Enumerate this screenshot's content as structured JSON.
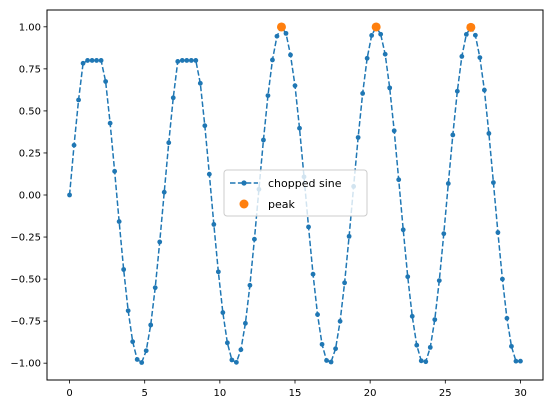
{
  "chart_data": {
    "type": "line",
    "xlim": [
      -1.5,
      31.5
    ],
    "ylim": [
      -1.1,
      1.1
    ],
    "xticks": [
      0,
      5,
      10,
      15,
      20,
      25,
      30
    ],
    "yticks": [
      -1.0,
      -0.75,
      -0.5,
      -0.25,
      0.0,
      0.25,
      0.5,
      0.75,
      1.0
    ],
    "xtick_labels": [
      "0",
      "5",
      "10",
      "15",
      "20",
      "25",
      "30"
    ],
    "ytick_labels": [
      "−1.00",
      "−0.75",
      "−0.50",
      "−0.25",
      "0.00",
      "0.25",
      "0.50",
      "0.75",
      "1.00"
    ],
    "grid": false,
    "legend_position": "center",
    "series": [
      {
        "name": "chopped sine",
        "style": "dashed-line-with-dot-markers",
        "color": "#1f77b4",
        "x": [
          0.0,
          0.3,
          0.6,
          0.9,
          1.2,
          1.5,
          1.8,
          2.1,
          2.4,
          2.7,
          3.0,
          3.3,
          3.6,
          3.9,
          4.2,
          4.5,
          4.8,
          5.1,
          5.4,
          5.7,
          6.0,
          6.3,
          6.6,
          6.9,
          7.2,
          7.5,
          7.8,
          8.1,
          8.4,
          8.7,
          9.0,
          9.3,
          9.6,
          9.9,
          10.2,
          10.5,
          10.8,
          11.1,
          11.4,
          11.7,
          12.0,
          12.3,
          12.6,
          12.9,
          13.2,
          13.5,
          13.8,
          14.1,
          14.4,
          14.7,
          15.0,
          15.3,
          15.6,
          15.9,
          16.2,
          16.5,
          16.8,
          17.1,
          17.4,
          17.7,
          18.0,
          18.3,
          18.6,
          18.9,
          19.2,
          19.5,
          19.8,
          20.1,
          20.4,
          20.7,
          21.0,
          21.3,
          21.6,
          21.9,
          22.2,
          22.5,
          22.8,
          23.1,
          23.4,
          23.7,
          24.0,
          24.3,
          24.6,
          24.9,
          25.2,
          25.5,
          25.8,
          26.1,
          26.4,
          26.7,
          27.0,
          27.3,
          27.6,
          27.9,
          28.2,
          28.5,
          28.8,
          29.1,
          29.4,
          29.7,
          30.0
        ],
        "y": [
          0.0,
          0.296,
          0.565,
          0.783,
          0.8,
          0.8,
          0.8,
          0.8,
          0.675,
          0.427,
          0.141,
          -0.158,
          -0.443,
          -0.688,
          -0.872,
          -0.978,
          -0.996,
          -0.926,
          -0.773,
          -0.551,
          -0.279,
          0.017,
          0.311,
          0.578,
          0.794,
          0.8,
          0.8,
          0.8,
          0.8,
          0.664,
          0.412,
          0.124,
          -0.175,
          -0.457,
          -0.699,
          -0.879,
          -0.981,
          -0.995,
          -0.92,
          -0.763,
          -0.537,
          -0.263,
          0.034,
          0.327,
          0.591,
          0.803,
          0.944,
          0.999,
          0.961,
          0.833,
          0.65,
          0.397,
          0.108,
          -0.19,
          -0.471,
          -0.711,
          -0.888,
          -0.984,
          -0.993,
          -0.914,
          -0.751,
          -0.522,
          -0.246,
          0.051,
          0.342,
          0.604,
          0.813,
          0.949,
          0.999,
          0.956,
          0.837,
          0.637,
          0.382,
          0.091,
          -0.207,
          -0.486,
          -0.721,
          -0.893,
          -0.986,
          -0.991,
          -0.906,
          -0.741,
          -0.509,
          -0.23,
          0.068,
          0.357,
          0.617,
          0.824,
          0.955,
          0.997,
          0.95,
          0.817,
          0.624,
          0.366,
          0.074,
          -0.223,
          -0.5,
          -0.733,
          -0.9,
          -0.988,
          -0.988
        ]
      },
      {
        "name": "peak",
        "style": "scatter",
        "color": "#ff7f0e",
        "x": [
          14.1,
          20.4,
          26.7
        ],
        "y": [
          0.999,
          0.999,
          0.997
        ]
      }
    ]
  }
}
